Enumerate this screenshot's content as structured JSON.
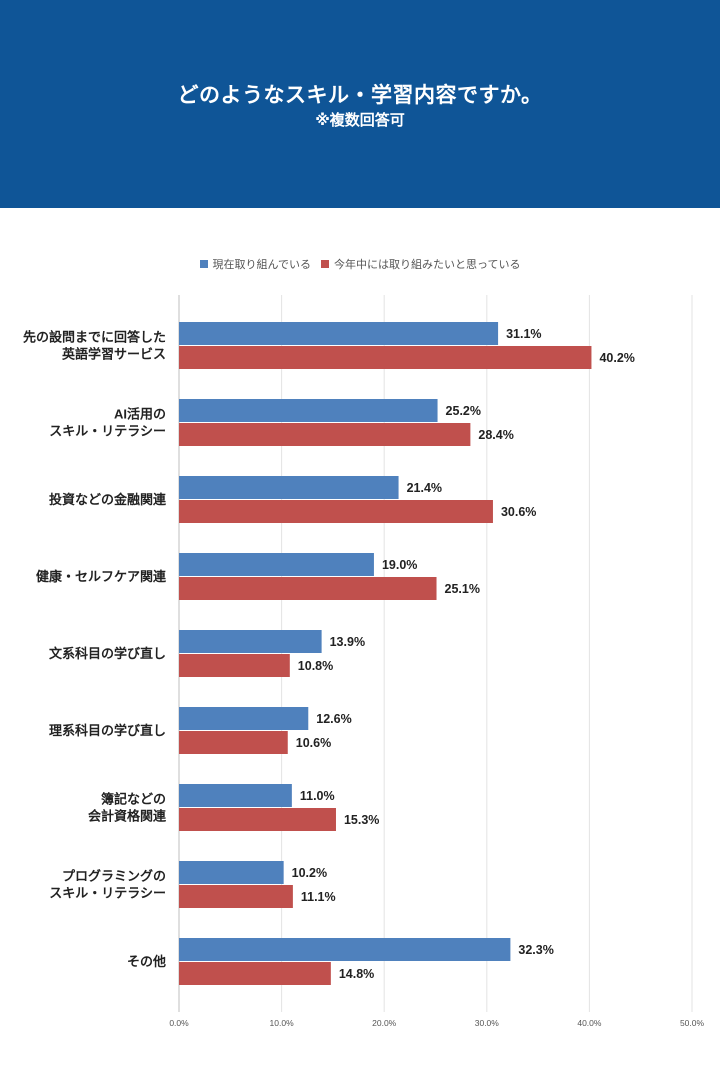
{
  "header": {
    "title": "どのようなスキル・学習内容ですか。",
    "subtitle": "※複数回答可"
  },
  "colors": {
    "header_bg": "#0f5597",
    "series1": "#4f81bd",
    "series2": "#c0504d"
  },
  "chart_data": {
    "type": "bar",
    "orientation": "horizontal",
    "categories": [
      [
        "先の設問までに回答した",
        "英語学習サービス"
      ],
      [
        "AI活用の",
        "スキル・リテラシー"
      ],
      [
        "投資などの金融関連"
      ],
      [
        "健康・セルフケア関連"
      ],
      [
        "文系科目の学び直し"
      ],
      [
        "理系科目の学び直し"
      ],
      [
        "簿記などの",
        "会計資格関連"
      ],
      [
        "プログラミングの",
        "スキル・リテラシー"
      ],
      [
        "その他"
      ]
    ],
    "series": [
      {
        "name": "現在取り組んでいる",
        "color": "#4f81bd",
        "values": [
          31.1,
          25.2,
          21.4,
          19.0,
          13.9,
          12.6,
          11.0,
          10.2,
          32.3
        ],
        "labels": [
          "31.1%",
          "25.2%",
          "21.4%",
          "19.0%",
          "13.9%",
          "12.6%",
          "11.0%",
          "10.2%",
          "32.3%"
        ]
      },
      {
        "name": "今年中には取り組みたいと思っている",
        "color": "#c0504d",
        "values": [
          40.2,
          28.4,
          30.6,
          25.1,
          10.8,
          10.6,
          15.3,
          11.1,
          14.8
        ],
        "labels": [
          "40.2%",
          "28.4%",
          "30.6%",
          "25.1%",
          "10.8%",
          "10.6%",
          "15.3%",
          "11.1%",
          "14.8%"
        ]
      }
    ],
    "xlim": [
      0,
      50
    ],
    "xticks": [
      "0.0%",
      "10.0%",
      "20.0%",
      "30.0%",
      "40.0%",
      "50.0%"
    ],
    "grid": true,
    "legend_position": "top"
  }
}
